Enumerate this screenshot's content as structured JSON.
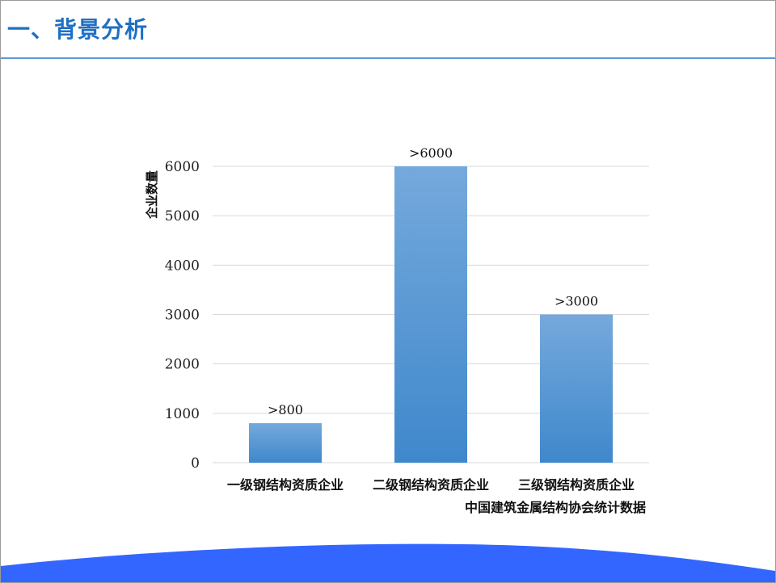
{
  "slide": {
    "title": "一、背景分析"
  },
  "chart_data": {
    "type": "bar",
    "categories": [
      "一级钢结构资质企业",
      "二级钢结构资质企业",
      "三级钢结构资质企业"
    ],
    "values": [
      800,
      6000,
      3000
    ],
    "data_labels": [
      ">800",
      ">6000",
      ">3000"
    ],
    "ylabel": "企业数量",
    "xlabel": "",
    "ylim": [
      0,
      6000
    ],
    "yticks": [
      0,
      1000,
      2000,
      3000,
      4000,
      5000,
      6000
    ],
    "grid": true,
    "source_note": "中国建筑金属结构协会统计数据"
  },
  "colors": {
    "title": "#1f6fc4",
    "bar_top": "#75a9dc",
    "bar_bottom": "#3f88cc",
    "wave": "#3366ff"
  }
}
